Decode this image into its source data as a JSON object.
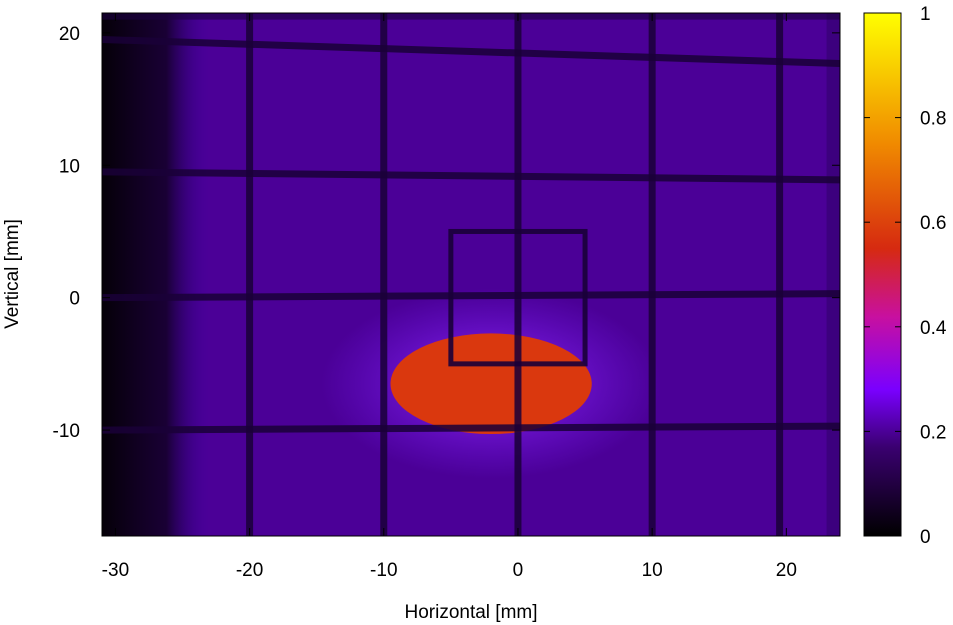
{
  "chart_data": {
    "type": "heatmap",
    "title": "",
    "xlabel": "Horizontal [mm]",
    "ylabel": "Vertical [mm]",
    "xlim": [
      -31,
      24
    ],
    "ylim": [
      -18,
      21.5
    ],
    "x_ticks": [
      {
        "value": -30,
        "label": "-30"
      },
      {
        "value": -20,
        "label": "-20"
      },
      {
        "value": -10,
        "label": "-10"
      },
      {
        "value": 0,
        "label": "0"
      },
      {
        "value": 10,
        "label": "10"
      },
      {
        "value": 20,
        "label": "20"
      }
    ],
    "y_ticks": [
      {
        "value": -10,
        "label": "-10"
      },
      {
        "value": 0,
        "label": "0"
      },
      {
        "value": 10,
        "label": "10"
      },
      {
        "value": 20,
        "label": "20"
      }
    ],
    "colorbar": {
      "range": [
        0,
        1
      ],
      "ticks": [
        {
          "value": 0,
          "label": "0"
        },
        {
          "value": 0.2,
          "label": "0.2"
        },
        {
          "value": 0.4,
          "label": "0.4"
        },
        {
          "value": 0.6,
          "label": "0.6"
        },
        {
          "value": 0.8,
          "label": "0.8"
        },
        {
          "value": 1,
          "label": "1"
        }
      ],
      "colormap": [
        "#000000",
        "#3a0070",
        "#7a00ff",
        "#c8109f",
        "#e04010",
        "#f08a00",
        "#ffff00"
      ]
    },
    "background_level": 0.2,
    "beam_spot": {
      "center_x": -2,
      "center_y": -6.5,
      "half_width": 7.5,
      "half_height": 3.8,
      "level": 0.58
    },
    "grid_wires": {
      "vertical_x": [
        -20,
        -10,
        0,
        10,
        19.5
      ],
      "horizontal_y": [
        19.5,
        9.5,
        0,
        -10
      ]
    },
    "aperture_box": {
      "x0": -5,
      "x1": 5,
      "y0": -5,
      "y1": 5
    }
  }
}
